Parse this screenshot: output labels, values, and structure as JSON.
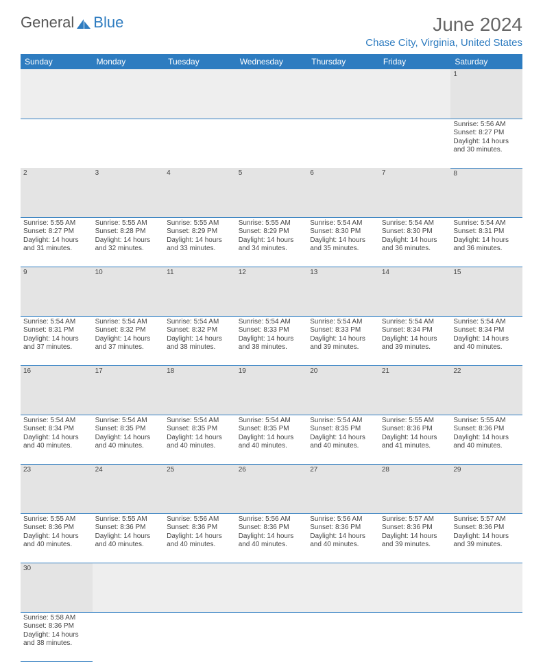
{
  "brand": {
    "part1": "General",
    "part2": "Blue"
  },
  "title": "June 2024",
  "location": "Chase City, Virginia, United States",
  "header_bg": "#2e7cc0",
  "header_fg": "#ffffff",
  "daynum_bg": "#e4e4e4",
  "cell_border": "#2e7cc0",
  "day_headers": [
    "Sunday",
    "Monday",
    "Tuesday",
    "Wednesday",
    "Thursday",
    "Friday",
    "Saturday"
  ],
  "weeks": [
    {
      "nums": [
        "",
        "",
        "",
        "",
        "",
        "",
        "1"
      ],
      "cells": [
        "",
        "",
        "",
        "",
        "",
        "",
        "Sunrise: 5:56 AM\nSunset: 8:27 PM\nDaylight: 14 hours and 30 minutes."
      ]
    },
    {
      "nums": [
        "2",
        "3",
        "4",
        "5",
        "6",
        "7",
        "8"
      ],
      "cells": [
        "Sunrise: 5:55 AM\nSunset: 8:27 PM\nDaylight: 14 hours and 31 minutes.",
        "Sunrise: 5:55 AM\nSunset: 8:28 PM\nDaylight: 14 hours and 32 minutes.",
        "Sunrise: 5:55 AM\nSunset: 8:29 PM\nDaylight: 14 hours and 33 minutes.",
        "Sunrise: 5:55 AM\nSunset: 8:29 PM\nDaylight: 14 hours and 34 minutes.",
        "Sunrise: 5:54 AM\nSunset: 8:30 PM\nDaylight: 14 hours and 35 minutes.",
        "Sunrise: 5:54 AM\nSunset: 8:30 PM\nDaylight: 14 hours and 36 minutes.",
        "Sunrise: 5:54 AM\nSunset: 8:31 PM\nDaylight: 14 hours and 36 minutes."
      ]
    },
    {
      "nums": [
        "9",
        "10",
        "11",
        "12",
        "13",
        "14",
        "15"
      ],
      "cells": [
        "Sunrise: 5:54 AM\nSunset: 8:31 PM\nDaylight: 14 hours and 37 minutes.",
        "Sunrise: 5:54 AM\nSunset: 8:32 PM\nDaylight: 14 hours and 37 minutes.",
        "Sunrise: 5:54 AM\nSunset: 8:32 PM\nDaylight: 14 hours and 38 minutes.",
        "Sunrise: 5:54 AM\nSunset: 8:33 PM\nDaylight: 14 hours and 38 minutes.",
        "Sunrise: 5:54 AM\nSunset: 8:33 PM\nDaylight: 14 hours and 39 minutes.",
        "Sunrise: 5:54 AM\nSunset: 8:34 PM\nDaylight: 14 hours and 39 minutes.",
        "Sunrise: 5:54 AM\nSunset: 8:34 PM\nDaylight: 14 hours and 40 minutes."
      ]
    },
    {
      "nums": [
        "16",
        "17",
        "18",
        "19",
        "20",
        "21",
        "22"
      ],
      "cells": [
        "Sunrise: 5:54 AM\nSunset: 8:34 PM\nDaylight: 14 hours and 40 minutes.",
        "Sunrise: 5:54 AM\nSunset: 8:35 PM\nDaylight: 14 hours and 40 minutes.",
        "Sunrise: 5:54 AM\nSunset: 8:35 PM\nDaylight: 14 hours and 40 minutes.",
        "Sunrise: 5:54 AM\nSunset: 8:35 PM\nDaylight: 14 hours and 40 minutes.",
        "Sunrise: 5:54 AM\nSunset: 8:35 PM\nDaylight: 14 hours and 40 minutes.",
        "Sunrise: 5:55 AM\nSunset: 8:36 PM\nDaylight: 14 hours and 41 minutes.",
        "Sunrise: 5:55 AM\nSunset: 8:36 PM\nDaylight: 14 hours and 40 minutes."
      ]
    },
    {
      "nums": [
        "23",
        "24",
        "25",
        "26",
        "27",
        "28",
        "29"
      ],
      "cells": [
        "Sunrise: 5:55 AM\nSunset: 8:36 PM\nDaylight: 14 hours and 40 minutes.",
        "Sunrise: 5:55 AM\nSunset: 8:36 PM\nDaylight: 14 hours and 40 minutes.",
        "Sunrise: 5:56 AM\nSunset: 8:36 PM\nDaylight: 14 hours and 40 minutes.",
        "Sunrise: 5:56 AM\nSunset: 8:36 PM\nDaylight: 14 hours and 40 minutes.",
        "Sunrise: 5:56 AM\nSunset: 8:36 PM\nDaylight: 14 hours and 40 minutes.",
        "Sunrise: 5:57 AM\nSunset: 8:36 PM\nDaylight: 14 hours and 39 minutes.",
        "Sunrise: 5:57 AM\nSunset: 8:36 PM\nDaylight: 14 hours and 39 minutes."
      ]
    },
    {
      "nums": [
        "30",
        "",
        "",
        "",
        "",
        "",
        ""
      ],
      "cells": [
        "Sunrise: 5:58 AM\nSunset: 8:36 PM\nDaylight: 14 hours and 38 minutes.",
        "",
        "",
        "",
        "",
        "",
        ""
      ]
    }
  ]
}
